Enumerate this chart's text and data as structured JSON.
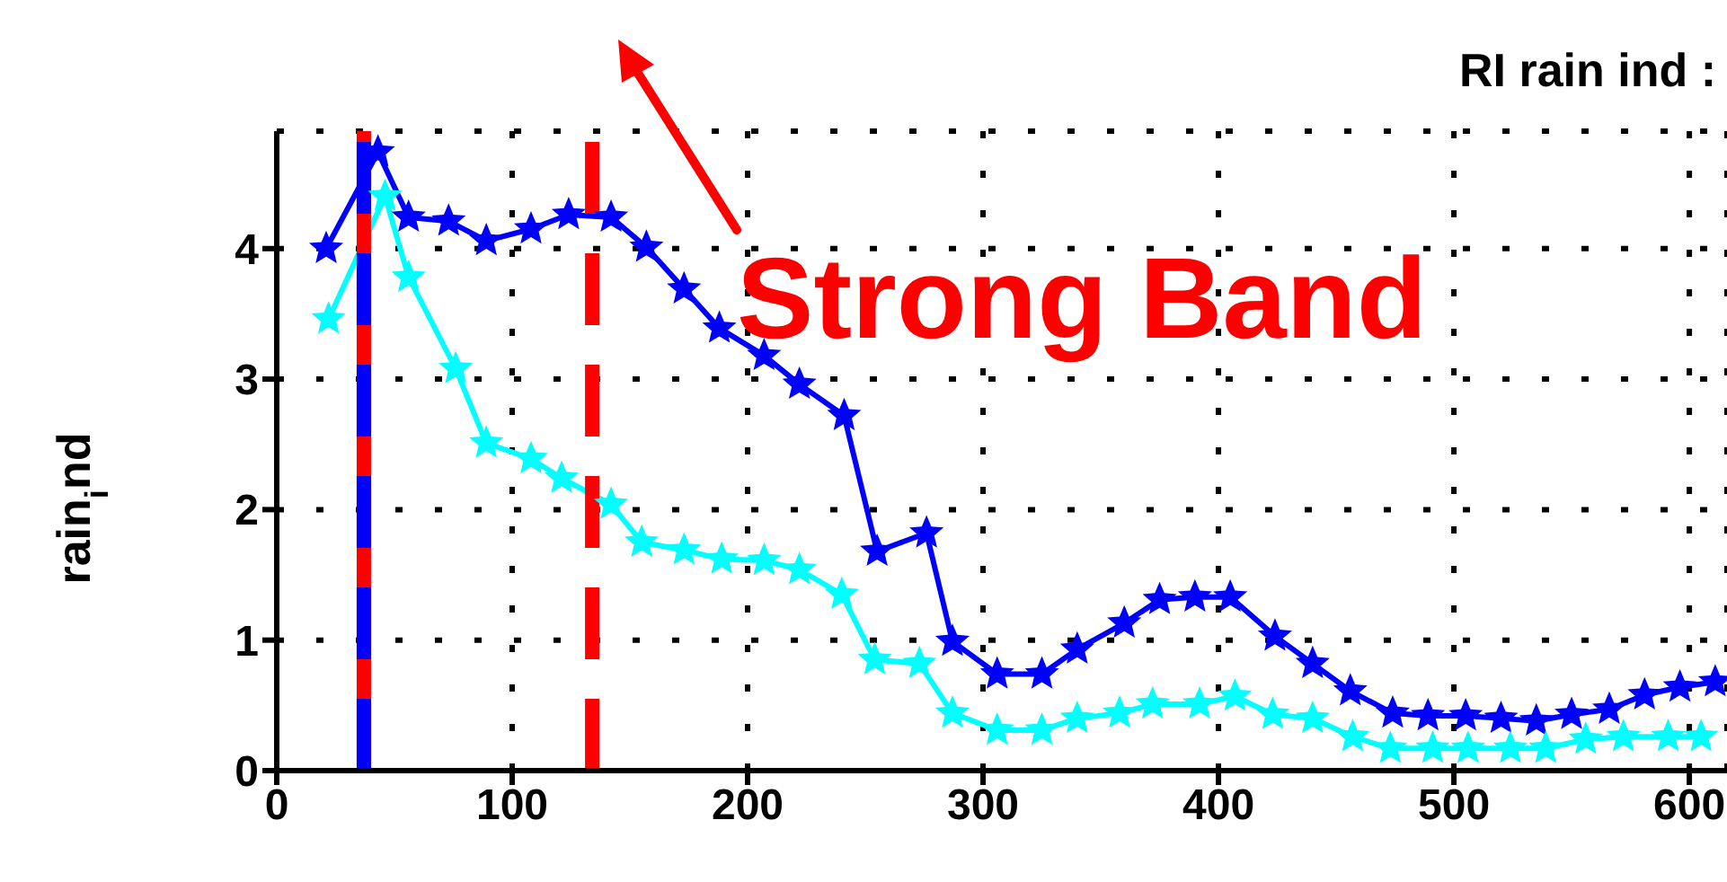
{
  "chart_data": {
    "type": "line",
    "title": "RI rain ind :",
    "ylabel": "rain$_{i}$nd",
    "annotations": [
      "Strong Band"
    ],
    "xlim": [
      0,
      616
    ],
    "xticks": [
      0,
      100,
      200,
      300,
      400,
      500,
      600
    ],
    "ylim": [
      0,
      4.9
    ],
    "yticks": [
      0,
      1,
      2,
      3,
      4
    ],
    "grid": true,
    "marker": "star",
    "line_style": "solid",
    "ref_lines": [
      {
        "axis": "x",
        "value": 37,
        "color": "#ff0000",
        "line_style": "solid"
      },
      {
        "axis": "x",
        "value": 37,
        "color": "#0000ff",
        "line_style": "dashed"
      },
      {
        "axis": "x",
        "value": 134,
        "color": "#ff0000",
        "line_style": "dashed"
      }
    ],
    "series": [
      {
        "color": "#0000ff",
        "x": [
          21,
          43,
          56,
          73,
          89,
          108,
          124,
          142,
          157,
          173,
          188,
          207,
          222,
          241,
          255,
          276,
          287,
          306,
          325,
          340,
          360,
          375,
          390,
          405,
          424,
          440,
          456,
          474,
          489,
          505,
          520,
          535,
          550,
          566,
          581,
          596,
          611
        ],
        "values": [
          4.0,
          4.74,
          4.24,
          4.21,
          4.06,
          4.15,
          4.26,
          4.24,
          4.01,
          3.69,
          3.39,
          3.18,
          2.96,
          2.72,
          1.68,
          1.82,
          0.99,
          0.74,
          0.74,
          0.93,
          1.13,
          1.31,
          1.33,
          1.33,
          1.03,
          0.82,
          0.61,
          0.44,
          0.42,
          0.42,
          0.4,
          0.38,
          0.43,
          0.47,
          0.58,
          0.64,
          0.68
        ]
      },
      {
        "color": "#00ffff",
        "x": [
          22,
          46,
          56,
          76,
          89,
          108,
          121,
          142,
          155,
          173,
          189,
          207,
          222,
          240,
          254,
          273,
          287,
          306,
          325,
          340,
          358,
          372,
          392,
          407,
          423,
          440,
          457,
          473,
          491,
          506,
          524,
          539,
          556,
          572,
          591,
          605
        ],
        "values": [
          3.46,
          4.4,
          3.78,
          3.08,
          2.51,
          2.39,
          2.24,
          2.04,
          1.75,
          1.69,
          1.62,
          1.61,
          1.54,
          1.35,
          0.85,
          0.82,
          0.44,
          0.31,
          0.31,
          0.4,
          0.44,
          0.51,
          0.51,
          0.57,
          0.43,
          0.4,
          0.26,
          0.17,
          0.17,
          0.17,
          0.17,
          0.17,
          0.24,
          0.26,
          0.26,
          0.26
        ]
      }
    ]
  }
}
